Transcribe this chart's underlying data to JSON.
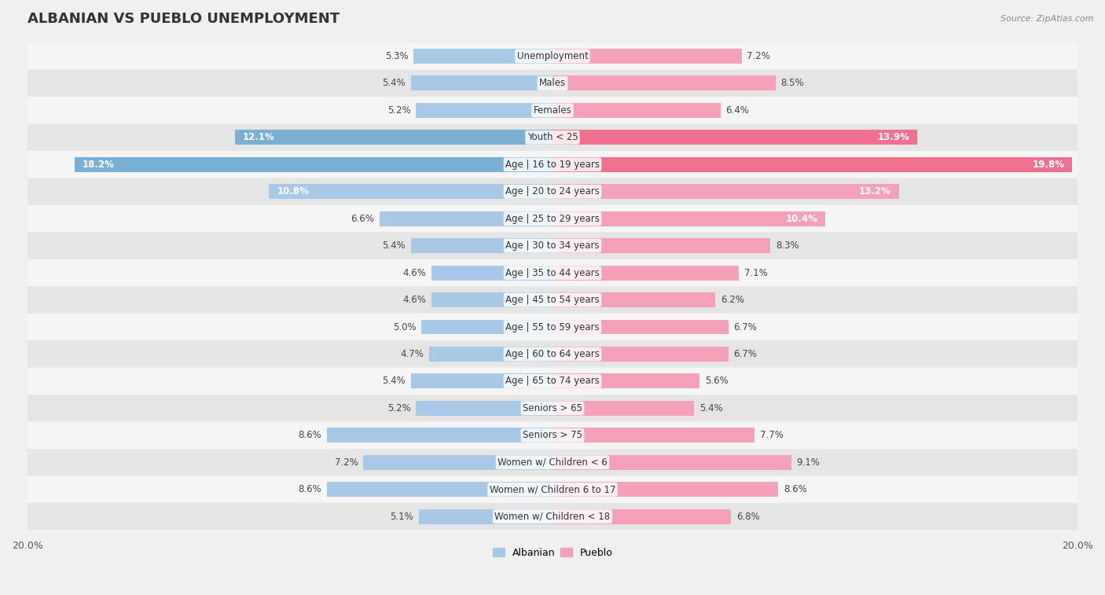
{
  "title": "ALBANIAN VS PUEBLO UNEMPLOYMENT",
  "source": "Source: ZipAtlas.com",
  "categories": [
    "Unemployment",
    "Males",
    "Females",
    "Youth < 25",
    "Age | 16 to 19 years",
    "Age | 20 to 24 years",
    "Age | 25 to 29 years",
    "Age | 30 to 34 years",
    "Age | 35 to 44 years",
    "Age | 45 to 54 years",
    "Age | 55 to 59 years",
    "Age | 60 to 64 years",
    "Age | 65 to 74 years",
    "Seniors > 65",
    "Seniors > 75",
    "Women w/ Children < 6",
    "Women w/ Children 6 to 17",
    "Women w/ Children < 18"
  ],
  "albanian": [
    5.3,
    5.4,
    5.2,
    12.1,
    18.2,
    10.8,
    6.6,
    5.4,
    4.6,
    4.6,
    5.0,
    4.7,
    5.4,
    5.2,
    8.6,
    7.2,
    8.6,
    5.1
  ],
  "pueblo": [
    7.2,
    8.5,
    6.4,
    13.9,
    19.8,
    13.2,
    10.4,
    8.3,
    7.1,
    6.2,
    6.7,
    6.7,
    5.6,
    5.4,
    7.7,
    9.1,
    8.6,
    6.8
  ],
  "albanian_color": "#a8c8e8",
  "pueblo_color": "#f4a0b8",
  "albanian_highlight_color": "#7ab0d4",
  "pueblo_highlight_color": "#f07090",
  "bg_light": "#f5f5f5",
  "bg_dark": "#e5e5e5",
  "fig_bg": "#f0f0f0",
  "max_val": 20.0,
  "bar_height": 0.55,
  "title_fontsize": 13,
  "label_fontsize": 8.5,
  "value_fontsize": 8.5,
  "tick_fontsize": 9,
  "legend_fontsize": 9,
  "source_fontsize": 8,
  "highlight_rows": [
    "Youth < 25",
    "Age | 16 to 19 years"
  ]
}
